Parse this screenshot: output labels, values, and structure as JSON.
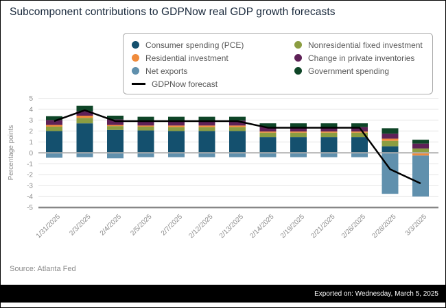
{
  "title": "Subcomponent contributions to GDPNow real GDP growth forecasts",
  "colors": {
    "pce": "#14506e",
    "residential": "#f08b3c",
    "net_exports": "#6090ad",
    "nonresidential": "#8b9d41",
    "inventories": "#5e2157",
    "government": "#0e4527",
    "forecast_line": "#000000",
    "grid": "#e3e3e3",
    "zero_line": "#b0b0b0",
    "axis_line": "#878787",
    "tick_text": "#8a8a8a"
  },
  "legend": {
    "column1": [
      {
        "key": "pce",
        "label": "Consumer spending (PCE)"
      },
      {
        "key": "residential",
        "label": "Residential investment"
      },
      {
        "key": "net_exports",
        "label": "Net exports"
      }
    ],
    "column2": [
      {
        "key": "nonresidential",
        "label": "Nonresidential fixed investment"
      },
      {
        "key": "inventories",
        "label": "Change in private inventories"
      },
      {
        "key": "government",
        "label": "Government spending"
      }
    ],
    "line_item": {
      "key": "forecast_line",
      "label": "GDPNow forecast"
    }
  },
  "chart_data": {
    "type": "bar",
    "stacked": true,
    "title": "Subcomponent contributions to GDPNow real GDP growth forecasts",
    "ylabel": "Percentage points",
    "ylim": [
      -5,
      5
    ],
    "yticks": [
      5,
      4,
      3,
      2,
      1,
      0,
      -1,
      -2,
      -3,
      -4,
      -5
    ],
    "grid": true,
    "legend_position": "top",
    "categories": [
      "1/31/2025",
      "2/3/2025",
      "2/4/2025",
      "2/5/2025",
      "2/7/2025",
      "2/12/2025",
      "2/13/2025",
      "2/14/2025",
      "2/19/2025",
      "2/21/2025",
      "2/26/2025",
      "2/28/2025",
      "3/3/2025"
    ],
    "series": [
      {
        "name": "Consumer spending (PCE)",
        "color_key": "pce",
        "values": [
          2.0,
          2.7,
          2.1,
          2.05,
          2.0,
          2.0,
          2.0,
          1.45,
          1.45,
          1.45,
          1.45,
          0.6,
          0.0
        ]
      },
      {
        "name": "Nonresidential fixed investment",
        "color_key": "nonresidential",
        "values": [
          0.4,
          0.5,
          0.35,
          0.35,
          0.35,
          0.35,
          0.35,
          0.4,
          0.4,
          0.4,
          0.4,
          0.5,
          0.4
        ]
      },
      {
        "name": "Residential investment",
        "color_key": "residential",
        "values": [
          0.15,
          0.2,
          0.1,
          0.1,
          0.15,
          0.15,
          0.15,
          0.1,
          0.1,
          0.1,
          0.1,
          0.2,
          -0.25
        ]
      },
      {
        "name": "Change in private inventories",
        "color_key": "inventories",
        "values": [
          0.45,
          0.4,
          0.5,
          0.45,
          0.45,
          0.45,
          0.45,
          0.4,
          0.4,
          0.4,
          0.4,
          0.45,
          0.45
        ]
      },
      {
        "name": "Government spending",
        "color_key": "government",
        "values": [
          0.35,
          0.5,
          0.35,
          0.35,
          0.35,
          0.35,
          0.35,
          0.35,
          0.35,
          0.35,
          0.35,
          0.5,
          0.35
        ]
      },
      {
        "name": "Net exports",
        "color_key": "net_exports",
        "values": [
          -0.45,
          -0.4,
          -0.5,
          -0.4,
          -0.4,
          -0.4,
          -0.4,
          -0.4,
          -0.4,
          -0.4,
          -0.4,
          -3.75,
          -3.75
        ]
      }
    ],
    "line": {
      "name": "GDPNow forecast",
      "values": [
        2.9,
        3.9,
        2.9,
        2.9,
        2.9,
        2.9,
        2.9,
        2.3,
        2.3,
        2.3,
        2.3,
        -1.5,
        -2.8
      ]
    }
  },
  "source": "Source: Atlanta Fed",
  "footer": {
    "exported_label": "Exported on: Wednesday, March 5, 2025"
  }
}
